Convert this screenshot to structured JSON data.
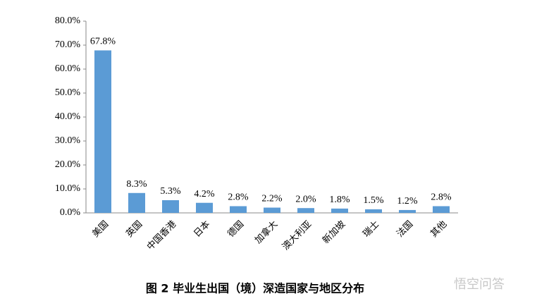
{
  "chart_data": {
    "type": "bar",
    "categories": [
      "美国",
      "英国",
      "中国香港",
      "日本",
      "德国",
      "加拿大",
      "澳大利亚",
      "新加坡",
      "瑞士",
      "法国",
      "其他"
    ],
    "values": [
      67.8,
      8.3,
      5.3,
      4.2,
      2.8,
      2.2,
      2.0,
      1.8,
      1.5,
      1.2,
      2.8
    ],
    "value_labels": [
      "67.8%",
      "8.3%",
      "5.3%",
      "4.2%",
      "2.8%",
      "2.2%",
      "2.0%",
      "1.8%",
      "1.5%",
      "1.2%",
      "2.8%"
    ],
    "color": "#5b9bd5",
    "ylim": [
      0,
      80
    ],
    "yticks": [
      {
        "value": 0,
        "label": "0.0%"
      },
      {
        "value": 10,
        "label": "10.0%"
      },
      {
        "value": 20,
        "label": "20.0%"
      },
      {
        "value": 30,
        "label": "30.0%"
      },
      {
        "value": 40,
        "label": "40.0%"
      },
      {
        "value": 50,
        "label": "50.0%"
      },
      {
        "value": 60,
        "label": "60.0%"
      },
      {
        "value": 70,
        "label": "70.0%"
      },
      {
        "value": 80,
        "label": "80.0%"
      }
    ],
    "grid": false,
    "caption": "图 2 毕业生出国（境）深造国家与地区分布",
    "watermark": "悟空问答"
  }
}
